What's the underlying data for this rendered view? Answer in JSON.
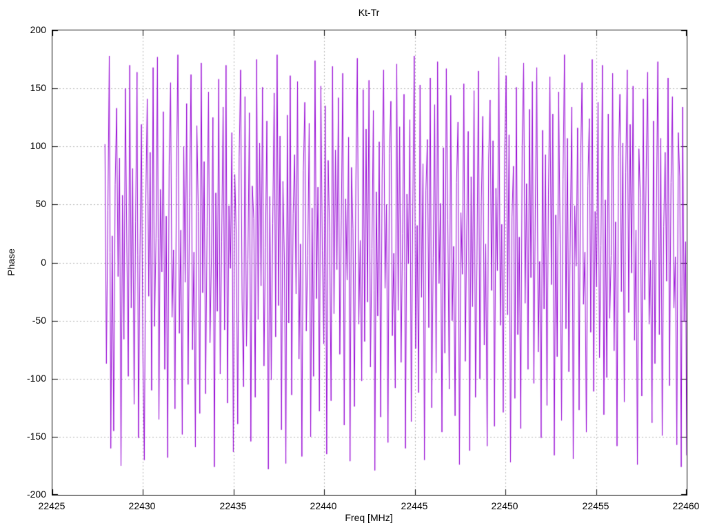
{
  "chart_data": {
    "type": "line",
    "title": "Kt-Tr",
    "xlabel": "Freq [MHz]",
    "ylabel": "Phase",
    "xlim": [
      22425,
      22460
    ],
    "ylim": [
      -200,
      200
    ],
    "grid": true,
    "grid_color": "#b0b0b0",
    "tick_color": "#000000",
    "line_color": "#9400d3",
    "x_tick_values": [
      22425,
      22430,
      22435,
      22440,
      22445,
      22450,
      22455,
      22460
    ],
    "x_tick_labels": [
      "22425",
      "22430",
      "22435",
      "22440",
      "22445",
      "22450",
      "22455",
      "22460"
    ],
    "y_tick_values": [
      200,
      150,
      100,
      50,
      0,
      -50,
      -100,
      -150,
      -200
    ],
    "y_tick_labels": [
      "200",
      "150",
      "100",
      "50",
      "0",
      "-50",
      "-100",
      "-150",
      "-200"
    ],
    "series": [
      {
        "name": "Kt-Tr",
        "x_start": 22427.9,
        "x_step": 0.0805,
        "values": [
          102,
          -87,
          45,
          178,
          -160,
          23,
          -145,
          67,
          133,
          -12,
          90,
          -175,
          58,
          -66,
          150,
          14,
          -98,
          170,
          -39,
          81,
          -122,
          35,
          164,
          -151,
          7,
          119,
          -80,
          -170,
          52,
          141,
          -29,
          95,
          -110,
          168,
          -55,
          21,
          177,
          -135,
          63,
          -8,
          130,
          -92,
          40,
          -168,
          84,
          155,
          -47,
          11,
          -126,
          73,
          179,
          -61,
          28,
          -148,
          100,
          -17,
          137,
          -105,
          56,
          162,
          -75,
          9,
          -159,
          118,
          44,
          -130,
          172,
          -26,
          87,
          -113,
          31,
          147,
          -69,
          5,
          125,
          -176,
          60,
          -42,
          158,
          -96,
          18,
          134,
          -58,
          170,
          -121,
          49,
          -5,
          112,
          -163,
          76,
          24,
          -139,
          91,
          166,
          -33,
          -107,
          143,
          -72,
          3,
          129,
          -154,
          66,
          38,
          -116,
          175,
          -49,
          103,
          -20,
          151,
          -89,
          13,
          122,
          -178,
          57,
          -101,
          34,
          146,
          -64,
          179,
          -37,
          109,
          -144,
          70,
          2,
          -173,
          127,
          -52,
          161,
          -114,
          42,
          93,
          -27,
          156,
          -83,
          16,
          -167,
          79,
          138,
          -59,
          6,
          120,
          -150,
          47,
          -98,
          174,
          -31,
          65,
          -128,
          152,
          10,
          -70,
          135,
          -165,
          88,
          26,
          -119,
          169,
          -44,
          97,
          -6,
          142,
          -79,
          36,
          163,
          -140,
          55,
          -15,
          108,
          -171,
          82,
          29,
          -124,
          71,
          176,
          -53,
          19,
          -102,
          149,
          -68,
          115,
          -34,
          157,
          -90,
          12,
          131,
          -179,
          61,
          -46,
          104,
          -133,
          77,
          166,
          -22,
          50,
          -155,
          94,
          139,
          -63,
          8,
          -108,
          171,
          -41,
          117,
          -86,
          25,
          145,
          -160,
          59,
          -1,
          123,
          -137,
          48,
          178,
          -74,
          32,
          -112,
          153,
          -30,
          85,
          -170,
          62,
          106,
          -56,
          159,
          -125,
          4,
          136,
          -95,
          173,
          -18,
          51,
          -146,
          99,
          -78,
          167,
          37,
          -109,
          144,
          -50,
          14,
          -132,
          69,
          121,
          -174,
          43,
          -10,
          154,
          -85,
          30,
          113,
          -162,
          74,
          -38,
          148,
          -116,
          0,
          165,
          -100,
          53,
          126,
          -71,
          16,
          -158,
          89,
          140,
          -24,
          105,
          -141,
          64,
          -7,
          177,
          -54,
          33,
          -129,
          96,
          161,
          -45,
          110,
          -172,
          39,
          83,
          -117,
          151,
          -62,
          22,
          -143,
          101,
          172,
          -35,
          68,
          -92,
          132,
          -13,
          156,
          -104,
          46,
          168,
          -77,
          1,
          -151,
          114,
          -40,
          93,
          -123,
          58,
          160,
          -19,
          128,
          -166,
          41,
          -81,
          147,
          20,
          -136,
          72,
          179,
          -57,
          107,
          -94,
          27,
          134,
          -169,
          49,
          -3,
          116,
          -127,
          86,
          155,
          -36,
          9,
          -146,
          66,
          124,
          -60,
          175,
          -111,
          44,
          -21,
          138,
          -82,
          15,
          170,
          -131,
          54,
          -99,
          128,
          -48,
          6,
          163,
          -76,
          35,
          -158,
          91,
          145,
          -25,
          103,
          -120,
          78,
          166,
          -43,
          119,
          -9,
          152,
          -67,
          28,
          -174,
          98,
          56,
          -115,
          141,
          -32,
          80,
          164,
          -53,
          2,
          -138,
          122,
          -87,
          47,
          173,
          -62,
          107,
          -149,
          31,
          95,
          -16,
          159,
          -106,
          69,
          143,
          -39,
          5,
          -157,
          112,
          74,
          -176,
          134,
          -51,
          18,
          -166
        ]
      }
    ]
  }
}
